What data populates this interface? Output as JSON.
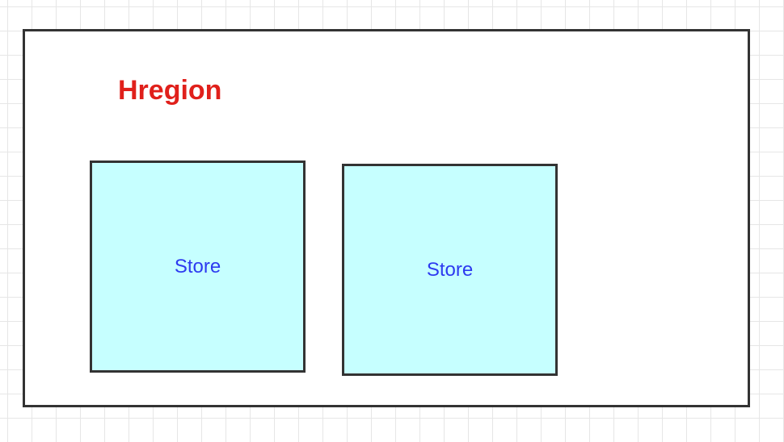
{
  "diagram": {
    "region": {
      "label": "Hregion",
      "label_color": "#e0201b",
      "border_color": "#333333"
    },
    "stores": [
      {
        "label": "Store",
        "fill": "#c6ffff",
        "text_color": "#2d3af0"
      },
      {
        "label": "Store",
        "fill": "#c6ffff",
        "text_color": "#2d3af0"
      }
    ]
  }
}
